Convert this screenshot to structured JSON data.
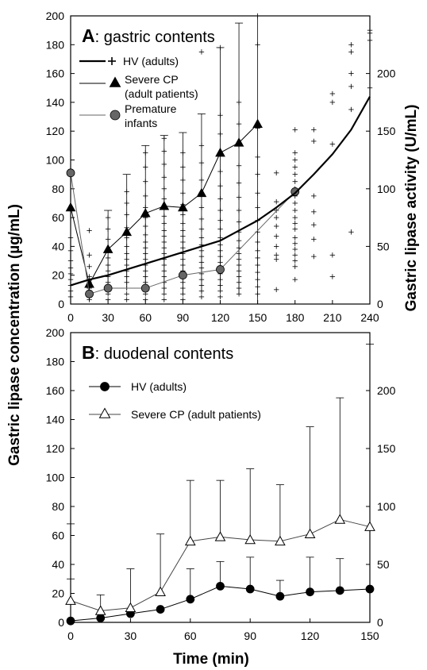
{
  "ylabel_left": "Gastric lipase concentration (µg/mL)",
  "ylabel_right": "Gastric lipase activity (U/mL)",
  "xlabel": "Time (min)",
  "chart_data": [
    {
      "type": "line",
      "panel_letter": "A",
      "title": ": gastric contents",
      "xlim": [
        0,
        240
      ],
      "ylim": [
        0,
        200
      ],
      "y2lim": [
        0,
        250
      ],
      "x_ticks": [
        0,
        30,
        60,
        90,
        120,
        150,
        180,
        210,
        240
      ],
      "y_ticks": [
        0,
        20,
        40,
        60,
        80,
        100,
        120,
        140,
        160,
        180,
        200
      ],
      "y2_ticks": [
        0,
        50,
        100,
        150,
        200
      ],
      "legend": [
        {
          "label": "HV (adults)",
          "marker": "plus-line"
        },
        {
          "label": "Severe CP",
          "label2": "(adult patients)",
          "marker": "triangle"
        },
        {
          "label": "Premature",
          "label2": "infants",
          "marker": "circle-gray"
        }
      ],
      "series": [
        {
          "name": "Severe CP (adult patients)",
          "marker": "triangle",
          "x": [
            0,
            15,
            30,
            45,
            60,
            75,
            90,
            105,
            120,
            135,
            150
          ],
          "y": [
            67,
            14,
            38,
            50,
            63,
            68,
            67,
            77,
            105,
            112,
            125
          ],
          "err_low": [
            60,
            12,
            30,
            40,
            55,
            60,
            60,
            70,
            95,
            105,
            125
          ],
          "err_high": [
            0,
            0,
            27,
            40,
            47,
            49,
            52,
            55,
            73,
            83,
            75
          ]
        },
        {
          "name": "Premature infants",
          "marker": "circle",
          "x": [
            0,
            15,
            30,
            60,
            90,
            120,
            180
          ],
          "y": [
            91,
            7,
            11,
            11,
            20,
            24,
            78
          ],
          "err_low": [
            0,
            0,
            0,
            0,
            0,
            0,
            0
          ],
          "err_high": [
            0,
            0,
            0,
            0,
            0,
            0,
            0
          ]
        },
        {
          "name": "HV (adults)",
          "marker": "none",
          "x": [
            0,
            15,
            30,
            45,
            60,
            75,
            90,
            105,
            120,
            135,
            150,
            165,
            180,
            195,
            210,
            225,
            240
          ],
          "y": [
            13,
            17,
            20,
            24,
            28,
            32,
            36,
            40,
            44,
            51,
            58,
            67,
            77,
            90,
            104,
            121,
            144
          ]
        }
      ],
      "scatter_plus": [
        {
          "x": 0,
          "y": [
            5,
            9,
            13,
            17,
            21,
            25,
            30,
            37,
            46
          ]
        },
        {
          "x": 15,
          "y": [
            3,
            7,
            11,
            15,
            19,
            26,
            34,
            51
          ]
        },
        {
          "x": 30,
          "y": [
            3,
            7,
            11,
            15,
            19,
            23,
            27,
            32,
            38,
            45,
            52,
            60
          ]
        },
        {
          "x": 45,
          "y": [
            3,
            7,
            11,
            15,
            19,
            23,
            27,
            31,
            35,
            40,
            46,
            53,
            62,
            70,
            78
          ]
        },
        {
          "x": 60,
          "y": [
            3,
            7,
            11,
            15,
            19,
            23,
            27,
            31,
            35,
            39,
            43,
            48,
            54,
            60,
            67,
            75,
            85,
            95,
            105
          ]
        },
        {
          "x": 75,
          "y": [
            3,
            7,
            11,
            15,
            19,
            23,
            27,
            31,
            35,
            39,
            43,
            47,
            51,
            56,
            61,
            67,
            73,
            80,
            88,
            97,
            106,
            115
          ]
        },
        {
          "x": 90,
          "y": [
            3,
            7,
            11,
            15,
            19,
            23,
            27,
            31,
            35,
            39,
            43,
            47,
            51,
            56,
            62,
            69,
            77,
            86,
            95,
            105
          ]
        },
        {
          "x": 105,
          "y": [
            5,
            9,
            13,
            17,
            21,
            25,
            29,
            33,
            37,
            41,
            46,
            52,
            59,
            67,
            76,
            86,
            98,
            110,
            175
          ]
        },
        {
          "x": 120,
          "y": [
            5,
            9,
            13,
            17,
            21,
            25,
            29,
            33,
            37,
            41,
            46,
            52,
            58,
            65,
            73,
            82,
            92,
            104,
            118,
            131,
            178
          ]
        },
        {
          "x": 135,
          "y": [
            7,
            11,
            15,
            19,
            23,
            27,
            31,
            35,
            39,
            44,
            50,
            57,
            65,
            74,
            84,
            96,
            110,
            125,
            140
          ]
        },
        {
          "x": 150,
          "y": [
            7,
            12,
            17,
            22,
            27,
            32,
            37,
            43,
            50,
            58,
            67,
            77,
            90,
            102,
            122,
            180,
            200
          ]
        },
        {
          "x": 165,
          "y": [
            10,
            31,
            34,
            40,
            47,
            54,
            60,
            65,
            71,
            91
          ]
        },
        {
          "x": 180,
          "y": [
            17,
            26,
            30,
            34,
            38,
            42,
            46,
            52,
            56,
            60,
            65,
            70,
            75,
            80,
            85,
            90,
            95,
            100,
            105,
            121
          ]
        },
        {
          "x": 195,
          "y": [
            33,
            45,
            55,
            64,
            75,
            113,
            121
          ]
        },
        {
          "x": 210,
          "y": [
            19,
            34,
            111,
            140,
            146
          ]
        },
        {
          "x": 225,
          "y": [
            50,
            135,
            151,
            160,
            175,
            180
          ]
        },
        {
          "x": 240,
          "y": [
            150,
            183,
            188,
            190
          ]
        }
      ]
    },
    {
      "type": "line",
      "panel_letter": "B",
      "title": ": duodenal contents",
      "xlim": [
        0,
        150
      ],
      "ylim": [
        0,
        200
      ],
      "y2lim": [
        0,
        250
      ],
      "x_ticks": [
        0,
        30,
        60,
        90,
        120,
        150
      ],
      "y_ticks": [
        0,
        20,
        40,
        60,
        80,
        100,
        120,
        140,
        160,
        180,
        200
      ],
      "y2_ticks": [
        0,
        50,
        100,
        150,
        200
      ],
      "legend": [
        {
          "label": "HV (adults)",
          "marker": "circle"
        },
        {
          "label": "Severe CP (adult patients)",
          "marker": "open-triangle"
        }
      ],
      "series": [
        {
          "name": "HV (adults)",
          "marker": "circle",
          "x": [
            0,
            15,
            30,
            45,
            60,
            75,
            90,
            105,
            120,
            135,
            150
          ],
          "y": [
            1,
            3,
            6,
            9,
            16,
            25,
            23,
            18,
            21,
            22,
            23
          ],
          "err_low": [
            1,
            3,
            6,
            9,
            16,
            20,
            20,
            18,
            16,
            20,
            23
          ],
          "err_high": [
            29,
            0,
            0,
            0,
            21,
            17,
            22,
            11,
            24,
            22,
            0
          ]
        },
        {
          "name": "Severe CP (adult patients)",
          "marker": "open-triangle",
          "x": [
            0,
            15,
            30,
            45,
            60,
            75,
            90,
            105,
            120,
            135,
            150
          ],
          "y": [
            15,
            8,
            10,
            21,
            56,
            59,
            57,
            56,
            61,
            71,
            66
          ],
          "err_low": [
            15,
            8,
            10,
            21,
            56,
            59,
            57,
            56,
            61,
            71,
            66
          ],
          "err_high": [
            53,
            11,
            27,
            40,
            42,
            39,
            49,
            39,
            74,
            84,
            126
          ]
        }
      ]
    }
  ]
}
